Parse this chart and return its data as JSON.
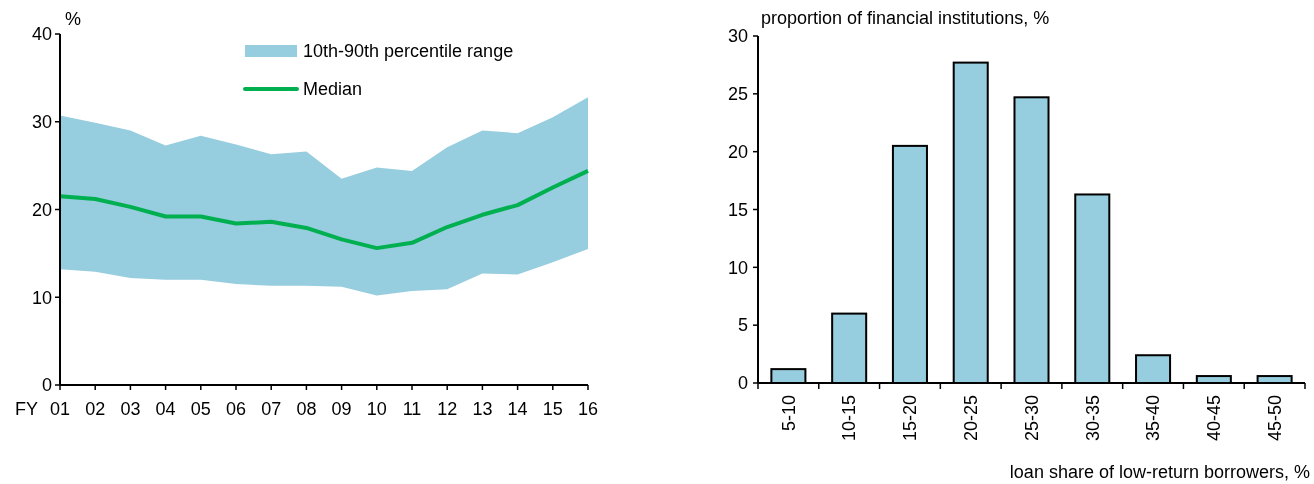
{
  "chart_data": [
    {
      "type": "line",
      "xlabel": "FY",
      "ylabel": "%",
      "categories": [
        "01",
        "02",
        "03",
        "04",
        "05",
        "06",
        "07",
        "08",
        "09",
        "10",
        "11",
        "12",
        "13",
        "14",
        "15",
        "16"
      ],
      "annotations": [
        "10th-90th percentile range"
      ],
      "series": [
        {
          "name": "Median",
          "color": "#00b050",
          "values": [
            21.5,
            21.2,
            20.3,
            19.2,
            19.2,
            18.4,
            18.6,
            17.9,
            16.6,
            15.6,
            16.2,
            18.0,
            19.4,
            20.5,
            22.5,
            24.4
          ],
          "lower": [
            13.2,
            12.9,
            12.2,
            12.0,
            12.0,
            11.5,
            11.3,
            11.3,
            11.2,
            10.2,
            10.7,
            10.9,
            12.7,
            12.6,
            14.0,
            15.5
          ],
          "upper": [
            30.7,
            29.9,
            29.0,
            27.3,
            28.4,
            27.4,
            26.3,
            26.6,
            23.5,
            24.8,
            24.4,
            27.1,
            29.0,
            28.7,
            30.5,
            32.8
          ]
        }
      ],
      "ylim": [
        0,
        40
      ],
      "yticks": [
        0,
        10,
        20,
        30,
        40
      ],
      "legend": "top right"
    },
    {
      "type": "bar",
      "ylabel": "proportion of financial institutions, %",
      "xlabel": "loan share of low-return borrowers, %",
      "categories": [
        "5-10",
        "10-15",
        "15-20",
        "20-25",
        "25-30",
        "30-35",
        "35-40",
        "40-45",
        "45-50"
      ],
      "values": [
        1.2,
        6.0,
        20.5,
        27.7,
        24.7,
        16.3,
        2.4,
        0.6,
        0.6
      ],
      "color": "#96cddf",
      "ylim": [
        0,
        30
      ],
      "yticks": [
        0,
        5,
        10,
        15,
        20,
        25,
        30
      ]
    }
  ]
}
